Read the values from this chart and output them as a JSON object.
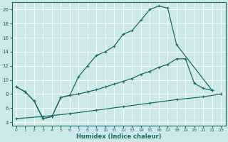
{
  "xlabel": "Humidex (Indice chaleur)",
  "bg_color": "#cde8e8",
  "line_color": "#1a6b6b",
  "grid_color": "#ffffff",
  "xlim": [
    -0.5,
    23.5
  ],
  "ylim": [
    3.5,
    21
  ],
  "xticks": [
    0,
    1,
    2,
    3,
    4,
    5,
    6,
    7,
    8,
    9,
    10,
    11,
    12,
    13,
    14,
    15,
    16,
    17,
    18,
    19,
    20,
    21,
    22,
    23
  ],
  "yticks": [
    4,
    6,
    8,
    10,
    12,
    14,
    16,
    18,
    20
  ],
  "curve1_x": [
    0,
    1,
    2,
    3,
    4,
    5,
    6,
    7,
    8,
    9,
    10,
    11,
    12,
    13,
    14,
    15,
    16,
    17,
    18,
    22
  ],
  "curve1_y": [
    9.0,
    8.3,
    7.0,
    4.5,
    4.8,
    7.5,
    7.8,
    10.5,
    12.0,
    13.5,
    14.0,
    14.8,
    16.5,
    17.0,
    18.5,
    20.0,
    20.5,
    20.2,
    15.0,
    8.5
  ],
  "curve2_x": [
    0,
    1,
    2,
    3,
    4,
    5,
    6,
    7,
    8,
    9,
    10,
    11,
    12,
    13,
    14,
    15,
    16,
    17,
    18,
    19,
    20,
    21,
    22
  ],
  "curve2_y": [
    9.0,
    8.3,
    7.0,
    4.5,
    4.8,
    7.5,
    7.8,
    8.0,
    8.3,
    8.6,
    9.0,
    9.4,
    9.8,
    10.2,
    10.8,
    11.2,
    11.8,
    12.2,
    13.0,
    13.0,
    9.5,
    8.8,
    8.5
  ],
  "curve3_x": [
    0,
    3,
    6,
    9,
    12,
    15,
    18,
    21,
    23
  ],
  "curve3_y": [
    4.5,
    4.8,
    5.2,
    5.7,
    6.2,
    6.7,
    7.2,
    7.6,
    8.0
  ]
}
